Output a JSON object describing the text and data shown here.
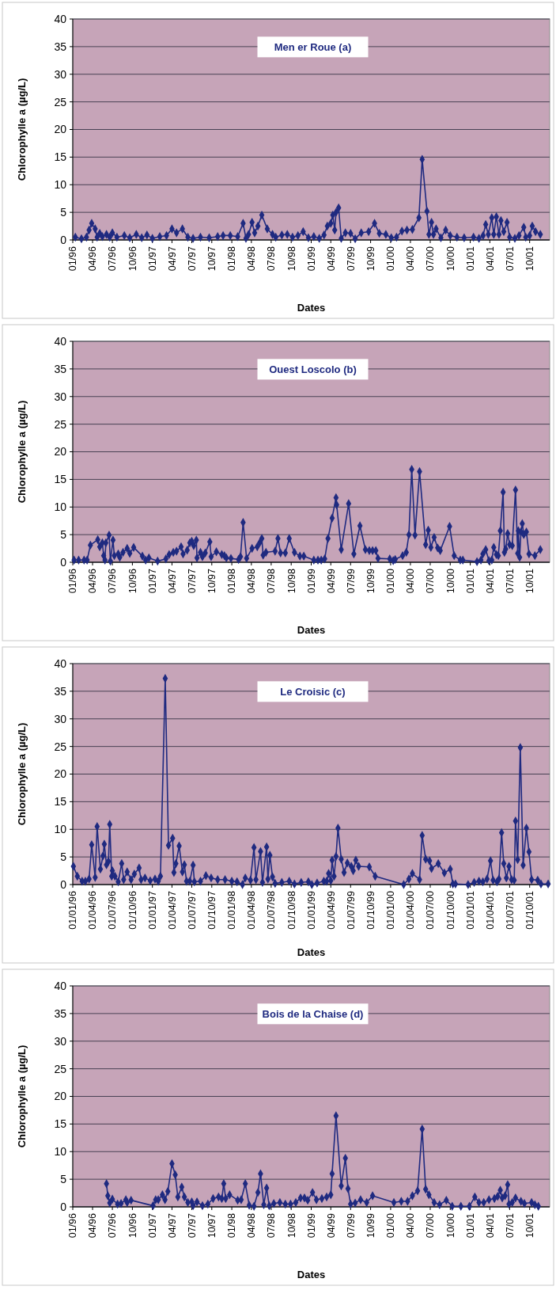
{
  "chart_data": [
    {
      "type": "line",
      "title": "Men er Roue (a)",
      "xlabel": "Dates",
      "ylabel": "Chlorophylle a (µg/L)",
      "color": "#1f2a80",
      "marker": "diamond",
      "line_style": "solid",
      "grid": "y",
      "xlim": [
        "1996-01-01",
        "2002-01-01"
      ],
      "ylim": [
        0,
        40
      ],
      "yticks": [
        0,
        5,
        10,
        15,
        20,
        25,
        30,
        35,
        40
      ],
      "xticks": [
        {
          "value": "1996-01-01",
          "label": "01/96"
        },
        {
          "value": "1996-04-01",
          "label": "04/96"
        },
        {
          "value": "1996-07-01",
          "label": "07/96"
        },
        {
          "value": "1996-10-01",
          "label": "10/96"
        },
        {
          "value": "1997-01-01",
          "label": "01/97"
        },
        {
          "value": "1997-04-01",
          "label": "04/97"
        },
        {
          "value": "1997-07-01",
          "label": "07/97"
        },
        {
          "value": "1997-10-01",
          "label": "10/97"
        },
        {
          "value": "1998-01-01",
          "label": "01/98"
        },
        {
          "value": "1998-04-01",
          "label": "04/98"
        },
        {
          "value": "1998-07-01",
          "label": "07/98"
        },
        {
          "value": "1998-10-01",
          "label": "10/98"
        },
        {
          "value": "1999-01-01",
          "label": "01/99"
        },
        {
          "value": "1999-04-01",
          "label": "04/99"
        },
        {
          "value": "1999-07-01",
          "label": "07/99"
        },
        {
          "value": "1999-10-01",
          "label": "10/99"
        },
        {
          "value": "2000-01-01",
          "label": "01/00"
        },
        {
          "value": "2000-04-01",
          "label": "04/00"
        },
        {
          "value": "2000-07-01",
          "label": "07/00"
        },
        {
          "value": "2000-10-01",
          "label": "10/00"
        },
        {
          "value": "2001-01-01",
          "label": "01/01"
        },
        {
          "value": "2001-04-01",
          "label": "04/01"
        },
        {
          "value": "2001-07-01",
          "label": "07/01"
        },
        {
          "value": "2001-10-01",
          "label": "10/01"
        }
      ],
      "x": [
        "1996-01-13",
        "1996-02-10",
        "1996-03-04",
        "1996-03-16",
        "1996-03-28",
        "1996-04-13",
        "1996-04-22",
        "1996-05-04",
        "1996-05-16",
        "1996-06-04",
        "1996-06-19",
        "1996-07-01",
        "1996-07-22",
        "1996-08-25",
        "1996-09-19",
        "1996-10-19",
        "1996-11-13",
        "1996-12-07",
        "1997-01-01",
        "1997-02-04",
        "1997-03-07",
        "1997-04-01",
        "1997-04-22",
        "1997-05-19",
        "1997-06-13",
        "1997-07-07",
        "1997-08-10",
        "1997-09-19",
        "1997-10-28",
        "1997-11-22",
        "1997-12-25",
        "1998-01-28",
        "1998-02-22",
        "1998-03-07",
        "1998-03-19",
        "1998-04-04",
        "1998-04-16",
        "1998-05-01",
        "1998-05-19",
        "1998-06-13",
        "1998-07-07",
        "1998-07-22",
        "1998-08-19",
        "1998-09-13",
        "1998-10-07",
        "1998-11-01",
        "1998-11-25",
        "1998-12-19",
        "1999-01-13",
        "1999-02-07",
        "1999-03-01",
        "1999-03-16",
        "1999-04-01",
        "1999-04-10",
        "1999-04-19",
        "1999-04-25",
        "1999-05-07",
        "1999-05-19",
        "1999-06-07",
        "1999-07-01",
        "1999-07-22",
        "1999-08-19",
        "1999-09-22",
        "1999-10-19",
        "1999-11-10",
        "1999-12-10",
        "2000-01-04",
        "2000-01-28",
        "2000-02-22",
        "2000-03-16",
        "2000-04-10",
        "2000-05-10",
        "2000-05-25",
        "2000-06-16",
        "2000-06-25",
        "2000-07-07",
        "2000-07-16",
        "2000-07-28",
        "2000-08-19",
        "2000-09-10",
        "2000-10-01",
        "2000-11-01",
        "2000-12-04",
        "2001-01-16",
        "2001-02-10",
        "2001-03-01",
        "2001-03-13",
        "2001-03-25",
        "2001-04-10",
        "2001-04-19",
        "2001-05-01",
        "2001-05-13",
        "2001-05-22",
        "2001-06-04",
        "2001-06-19",
        "2001-07-01",
        "2001-07-25",
        "2001-08-13",
        "2001-09-04",
        "2001-09-13",
        "2001-10-01",
        "2001-10-13",
        "2001-10-28",
        "2001-11-19"
      ],
      "values": [
        0.5,
        0.2,
        0.5,
        1.8,
        3.0,
        2.0,
        0.5,
        1.2,
        0.6,
        1.0,
        0.5,
        1.3,
        0.5,
        0.8,
        0.4,
        1.0,
        0.4,
        0.9,
        0.3,
        0.6,
        0.8,
        2.0,
        1.3,
        2.0,
        0.5,
        0.3,
        0.5,
        0.4,
        0.6,
        0.8,
        0.8,
        0.6,
        3.0,
        0.3,
        1.0,
        3.2,
        1.3,
        2.5,
        4.5,
        2.0,
        1.0,
        0.5,
        0.9,
        1.0,
        0.5,
        0.8,
        1.5,
        0.4,
        0.6,
        0.3,
        0.9,
        2.5,
        3.0,
        4.5,
        1.8,
        5.0,
        5.8,
        0.3,
        1.3,
        1.2,
        0.2,
        1.3,
        1.5,
        3.0,
        1.2,
        1.0,
        0.4,
        0.5,
        1.6,
        1.8,
        1.9,
        4.0,
        14.6,
        5.2,
        1.0,
        3.2,
        1.0,
        2.0,
        0.4,
        1.8,
        0.8,
        0.5,
        0.4,
        0.5,
        0.3,
        0.8,
        2.8,
        1.0,
        4.0,
        1.0,
        4.2,
        1.0,
        3.5,
        1.5,
        3.2,
        0.5,
        0.3,
        0.8,
        2.3,
        0.5,
        0.8,
        2.5,
        1.5,
        1.0
      ]
    },
    {
      "type": "line",
      "title": "Ouest Loscolo (b)",
      "xlabel": "Dates",
      "ylabel": "Chlorophylle a (µg/L)",
      "color": "#1f2a80",
      "marker": "diamond",
      "line_style": "solid",
      "grid": "y",
      "xlim": [
        "1996-01-01",
        "2002-01-01"
      ],
      "ylim": [
        0,
        40
      ],
      "yticks": [
        0,
        5,
        10,
        15,
        20,
        25,
        30,
        35,
        40
      ],
      "xticks": [
        {
          "value": "1996-01-01",
          "label": "01/96"
        },
        {
          "value": "1996-04-01",
          "label": "04/96"
        },
        {
          "value": "1996-07-01",
          "label": "07/96"
        },
        {
          "value": "1996-10-01",
          "label": "10/96"
        },
        {
          "value": "1997-01-01",
          "label": "01/97"
        },
        {
          "value": "1997-04-01",
          "label": "04/97"
        },
        {
          "value": "1997-07-01",
          "label": "07/97"
        },
        {
          "value": "1997-10-01",
          "label": "10/97"
        },
        {
          "value": "1998-01-01",
          "label": "01/98"
        },
        {
          "value": "1998-04-01",
          "label": "04/98"
        },
        {
          "value": "1998-07-01",
          "label": "07/98"
        },
        {
          "value": "1998-10-01",
          "label": "10/98"
        },
        {
          "value": "1999-01-01",
          "label": "01/99"
        },
        {
          "value": "1999-04-01",
          "label": "04/99"
        },
        {
          "value": "1999-07-01",
          "label": "07/99"
        },
        {
          "value": "1999-10-01",
          "label": "10/99"
        },
        {
          "value": "2000-01-01",
          "label": "01/00"
        },
        {
          "value": "2000-04-01",
          "label": "04/00"
        },
        {
          "value": "2000-07-01",
          "label": "07/00"
        },
        {
          "value": "2000-10-01",
          "label": "10/00"
        },
        {
          "value": "2001-01-01",
          "label": "01/01"
        },
        {
          "value": "2001-04-01",
          "label": "04/01"
        },
        {
          "value": "2001-07-01",
          "label": "07/01"
        },
        {
          "value": "2001-10-01",
          "label": "10/01"
        }
      ],
      "x": [
        "1996-01-07",
        "1996-01-28",
        "1996-02-22",
        "1996-03-07",
        "1996-03-22",
        "1996-04-25",
        "1996-05-04",
        "1996-05-16",
        "1996-05-22",
        "1996-05-28",
        "1996-06-01",
        "1996-06-16",
        "1996-06-22",
        "1996-07-04",
        "1996-07-10",
        "1996-07-28",
        "1996-08-04",
        "1996-08-19",
        "1996-09-07",
        "1996-09-19",
        "1996-10-07",
        "1996-11-16",
        "1996-12-01",
        "1996-12-16",
        "1997-01-25",
        "1997-03-04",
        "1997-03-19",
        "1997-04-07",
        "1997-04-22",
        "1997-05-13",
        "1997-05-22",
        "1997-06-10",
        "1997-06-22",
        "1997-07-01",
        "1997-07-10",
        "1997-07-22",
        "1997-07-25",
        "1997-08-10",
        "1997-08-19",
        "1997-09-01",
        "1997-09-22",
        "1997-09-28",
        "1997-10-22",
        "1997-11-16",
        "1997-11-28",
        "1997-12-07",
        "1997-12-28",
        "1998-02-01",
        "1998-02-10",
        "1998-02-22",
        "1998-03-10",
        "1998-04-04",
        "1998-04-28",
        "1998-05-10",
        "1998-05-19",
        "1998-05-25",
        "1998-06-07",
        "1998-07-19",
        "1998-08-01",
        "1998-08-13",
        "1998-09-04",
        "1998-09-22",
        "1998-10-16",
        "1998-11-10",
        "1998-11-28",
        "1999-01-13",
        "1999-02-01",
        "1999-02-16",
        "1999-03-04",
        "1999-03-19",
        "1999-04-07",
        "1999-04-25",
        "1999-04-28",
        "1999-05-19",
        "1999-06-22",
        "1999-07-16",
        "1999-08-13",
        "1999-09-07",
        "1999-09-25",
        "1999-10-10",
        "1999-10-25",
        "1999-11-04",
        "1999-12-28",
        "2000-01-13",
        "2000-01-22",
        "2000-02-25",
        "2000-03-13",
        "2000-03-25",
        "2000-04-07",
        "2000-04-22",
        "2000-05-13",
        "2000-06-10",
        "2000-06-22",
        "2000-07-04",
        "2000-07-19",
        "2000-08-04",
        "2000-08-16",
        "2000-09-28",
        "2000-10-19",
        "2000-11-16",
        "2000-11-28",
        "2001-02-01",
        "2001-02-19",
        "2001-02-28",
        "2001-03-13",
        "2001-03-28",
        "2001-04-10",
        "2001-04-19",
        "2001-05-01",
        "2001-05-10",
        "2001-05-19",
        "2001-06-01",
        "2001-06-07",
        "2001-06-13",
        "2001-06-22",
        "2001-07-01",
        "2001-07-13",
        "2001-07-28",
        "2001-08-07",
        "2001-08-10",
        "2001-08-16",
        "2001-08-22",
        "2001-08-28",
        "2001-09-04",
        "2001-09-16",
        "2001-09-28",
        "2001-10-25",
        "2001-11-19"
      ],
      "values": [
        0.4,
        0.4,
        0.4,
        0.4,
        3.1,
        4.1,
        2.8,
        3.5,
        1.2,
        0.4,
        3.5,
        4.9,
        0.2,
        4.0,
        1.2,
        1.5,
        0.9,
        1.8,
        2.5,
        1.6,
        2.7,
        1.1,
        0.4,
        0.8,
        0.2,
        0.6,
        1.4,
        1.8,
        2.0,
        2.8,
        1.5,
        2.2,
        3.5,
        3.8,
        3.0,
        4.0,
        0.8,
        1.8,
        1.0,
        1.7,
        3.7,
        1.0,
        1.9,
        1.4,
        1.2,
        0.8,
        0.7,
        0.5,
        1.0,
        7.2,
        0.7,
        2.5,
        2.8,
        3.6,
        4.3,
        1.3,
        1.8,
        2.0,
        4.3,
        1.7,
        1.7,
        4.3,
        1.8,
        1.1,
        1.1,
        0.4,
        0.4,
        0.4,
        0.6,
        4.3,
        8.0,
        11.7,
        10.4,
        2.3,
        10.6,
        1.5,
        6.6,
        2.3,
        2.1,
        2.1,
        2.1,
        0.7,
        0.6,
        0.3,
        0.5,
        1.2,
        1.8,
        5.0,
        16.8,
        4.9,
        16.4,
        3.2,
        5.8,
        2.7,
        4.5,
        2.6,
        2.1,
        6.5,
        1.2,
        0.4,
        0.4,
        0.1,
        0.4,
        1.5,
        2.3,
        0.3,
        0.4,
        2.7,
        1.4,
        1.2,
        5.7,
        12.7,
        1.8,
        2.4,
        5.2,
        3.2,
        3.0,
        13.1,
        1.6,
        5.7,
        0.9,
        5.5,
        7.0,
        5.0,
        5.5,
        1.5,
        1.2,
        2.3
      ]
    },
    {
      "type": "line",
      "title": "Le Croisic (c)",
      "xlabel": "Dates",
      "ylabel": "Chlorophylle a (µg/L)",
      "color": "#1f2a80",
      "marker": "diamond",
      "line_style": "solid",
      "grid": "y",
      "xlim": [
        "1996-01-01",
        "2002-01-01"
      ],
      "ylim": [
        0,
        40
      ],
      "yticks": [
        0,
        5,
        10,
        15,
        20,
        25,
        30,
        35,
        40
      ],
      "xticks": [
        {
          "value": "1996-01-01",
          "label": "01/01/96"
        },
        {
          "value": "1996-04-01",
          "label": "01/04/96"
        },
        {
          "value": "1996-07-01",
          "label": "01/07/96"
        },
        {
          "value": "1996-10-01",
          "label": "01/10/96"
        },
        {
          "value": "1997-01-01",
          "label": "01/01/97"
        },
        {
          "value": "1997-04-01",
          "label": "01/04/97"
        },
        {
          "value": "1997-07-01",
          "label": "01/07/97"
        },
        {
          "value": "1997-10-01",
          "label": "01/10/97"
        },
        {
          "value": "1998-01-01",
          "label": "01/01/98"
        },
        {
          "value": "1998-04-01",
          "label": "01/04/98"
        },
        {
          "value": "1998-07-01",
          "label": "01/07/98"
        },
        {
          "value": "1998-10-01",
          "label": "01/10/98"
        },
        {
          "value": "1999-01-01",
          "label": "01/01/99"
        },
        {
          "value": "1999-04-01",
          "label": "01/04/99"
        },
        {
          "value": "1999-07-01",
          "label": "01/07/99"
        },
        {
          "value": "1999-10-01",
          "label": "01/10/99"
        },
        {
          "value": "2000-01-01",
          "label": "01/01/00"
        },
        {
          "value": "2000-04-01",
          "label": "01/04/00"
        },
        {
          "value": "2000-07-01",
          "label": "01/07/00"
        },
        {
          "value": "2000-10-01",
          "label": "01/10/00"
        },
        {
          "value": "2001-01-01",
          "label": "01/01/01"
        },
        {
          "value": "2001-04-01",
          "label": "01/04/01"
        },
        {
          "value": "2001-07-01",
          "label": "01/07/01"
        },
        {
          "value": "2001-10-01",
          "label": "01/10/01"
        }
      ],
      "x": [
        "1996-01-04",
        "1996-01-22",
        "1996-02-13",
        "1996-02-28",
        "1996-03-16",
        "1996-03-28",
        "1996-04-13",
        "1996-04-22",
        "1996-05-07",
        "1996-05-19",
        "1996-05-25",
        "1996-06-04",
        "1996-06-13",
        "1996-06-19",
        "1996-06-28",
        "1996-07-01",
        "1996-07-13",
        "1996-07-28",
        "1996-08-13",
        "1996-08-22",
        "1996-09-07",
        "1996-09-25",
        "1996-10-10",
        "1996-11-01",
        "1996-11-10",
        "1996-11-28",
        "1996-12-22",
        "1997-01-13",
        "1997-01-28",
        "1997-02-07",
        "1997-03-01",
        "1997-03-16",
        "1997-04-04",
        "1997-04-10",
        "1997-04-19",
        "1997-05-04",
        "1997-05-19",
        "1997-05-28",
        "1997-06-07",
        "1997-06-22",
        "1997-07-07",
        "1997-07-13",
        "1997-08-10",
        "1997-09-04",
        "1997-09-28",
        "1997-10-28",
        "1997-12-01",
        "1998-01-01",
        "1998-01-25",
        "1998-02-19",
        "1998-03-04",
        "1998-03-28",
        "1998-04-13",
        "1998-04-22",
        "1998-05-13",
        "1998-05-22",
        "1998-06-10",
        "1998-06-16",
        "1998-06-25",
        "1998-07-07",
        "1998-07-19",
        "1998-08-19",
        "1998-09-22",
        "1998-10-16",
        "1998-11-16",
        "1998-12-19",
        "1999-01-04",
        "1999-01-28",
        "1999-02-28",
        "1999-03-13",
        "1999-03-22",
        "1999-04-01",
        "1999-04-07",
        "1999-04-16",
        "1999-04-25",
        "1999-05-04",
        "1999-05-19",
        "1999-06-01",
        "1999-06-16",
        "1999-07-04",
        "1999-07-13",
        "1999-07-25",
        "1999-08-07",
        "1999-09-25",
        "1999-10-22",
        "2000-03-01",
        "2000-03-25",
        "2000-04-10",
        "2000-05-13",
        "2000-05-25",
        "2000-06-10",
        "2000-06-28",
        "2000-07-07",
        "2000-08-07",
        "2000-09-04",
        "2000-10-01",
        "2000-10-13",
        "2000-10-25",
        "2000-12-22",
        "2001-01-19",
        "2001-02-10",
        "2001-02-28",
        "2001-03-19",
        "2001-04-04",
        "2001-04-16",
        "2001-05-04",
        "2001-05-13",
        "2001-05-25",
        "2001-06-04",
        "2001-06-16",
        "2001-06-28",
        "2001-07-10",
        "2001-07-22",
        "2001-07-28",
        "2001-08-07",
        "2001-08-19",
        "2001-09-01",
        "2001-09-16",
        "2001-09-28",
        "2001-10-10",
        "2001-11-07",
        "2001-11-22",
        "2001-12-25"
      ],
      "values": [
        3.3,
        1.5,
        0.6,
        0.6,
        1.0,
        7.2,
        1.3,
        10.5,
        2.8,
        5.2,
        7.3,
        3.6,
        4.2,
        10.9,
        1.5,
        2.5,
        1.5,
        0.5,
        3.8,
        0.9,
        2.3,
        0.9,
        1.9,
        3.0,
        0.9,
        1.2,
        0.7,
        1.0,
        0.6,
        1.5,
        37.3,
        7.1,
        8.4,
        2.2,
        3.8,
        7.0,
        2.3,
        3.6,
        0.6,
        0.6,
        3.5,
        0.5,
        0.6,
        1.6,
        1.2,
        0.9,
        0.9,
        0.6,
        0.5,
        0.0,
        1.2,
        0.8,
        6.7,
        0.9,
        6.0,
        0.4,
        6.8,
        1.0,
        5.3,
        1.4,
        0.2,
        0.4,
        0.6,
        0.1,
        0.4,
        0.5,
        0.0,
        0.3,
        0.6,
        0.6,
        2.0,
        0.7,
        4.4,
        1.5,
        5.1,
        10.2,
        4.6,
        2.2,
        3.9,
        3.3,
        2.5,
        4.4,
        3.3,
        3.2,
        1.5,
        0.0,
        1.0,
        2.0,
        0.9,
        8.9,
        4.6,
        4.3,
        2.9,
        3.8,
        2.1,
        2.8,
        0.1,
        0.1,
        0.0,
        0.4,
        0.6,
        0.5,
        1.0,
        4.3,
        0.8,
        0.5,
        1.0,
        9.4,
        3.8,
        1.2,
        3.3,
        0.9,
        0.8,
        11.5,
        4.5,
        24.8,
        3.5,
        10.2,
        5.9,
        0.9,
        0.8,
        0.1,
        0.1
      ]
    },
    {
      "type": "line",
      "title": "Bois de la Chaise (d)",
      "xlabel": "Dates",
      "ylabel": "Chlorophylle a (µg/L)",
      "color": "#1f2a80",
      "marker": "diamond",
      "line_style": "solid",
      "grid": "y",
      "xlim": [
        "1996-01-01",
        "2002-01-01"
      ],
      "ylim": [
        0,
        40
      ],
      "yticks": [
        0,
        5,
        10,
        15,
        20,
        25,
        30,
        35,
        40
      ],
      "xticks": [
        {
          "value": "1996-01-01",
          "label": "01/96"
        },
        {
          "value": "1996-04-01",
          "label": "04/96"
        },
        {
          "value": "1996-07-01",
          "label": "07/96"
        },
        {
          "value": "1996-10-01",
          "label": "10/96"
        },
        {
          "value": "1997-01-01",
          "label": "01/97"
        },
        {
          "value": "1997-04-01",
          "label": "04/97"
        },
        {
          "value": "1997-07-01",
          "label": "07/97"
        },
        {
          "value": "1997-10-01",
          "label": "10/97"
        },
        {
          "value": "1998-01-01",
          "label": "01/98"
        },
        {
          "value": "1998-04-01",
          "label": "04/98"
        },
        {
          "value": "1998-07-01",
          "label": "07/98"
        },
        {
          "value": "1998-10-01",
          "label": "10/98"
        },
        {
          "value": "1999-01-01",
          "label": "01/99"
        },
        {
          "value": "1999-04-01",
          "label": "04/99"
        },
        {
          "value": "1999-07-01",
          "label": "07/99"
        },
        {
          "value": "1999-10-01",
          "label": "10/99"
        },
        {
          "value": "2000-01-01",
          "label": "01/00"
        },
        {
          "value": "2000-04-01",
          "label": "04/00"
        },
        {
          "value": "2000-07-01",
          "label": "07/00"
        },
        {
          "value": "2000-10-01",
          "label": "10/00"
        },
        {
          "value": "2001-01-01",
          "label": "01/01"
        },
        {
          "value": "2001-04-01",
          "label": "04/01"
        },
        {
          "value": "2001-07-01",
          "label": "07/01"
        },
        {
          "value": "2001-10-01",
          "label": "10/01"
        }
      ],
      "x": [
        "1996-06-04",
        "1996-06-10",
        "1996-06-19",
        "1996-07-01",
        "1996-07-25",
        "1996-08-10",
        "1996-09-01",
        "1996-09-07",
        "1996-09-25",
        "1997-01-04",
        "1997-01-16",
        "1997-01-28",
        "1997-02-16",
        "1997-02-28",
        "1997-03-13",
        "1997-04-01",
        "1997-04-16",
        "1997-04-28",
        "1997-05-16",
        "1997-05-28",
        "1997-06-13",
        "1997-07-01",
        "1997-07-07",
        "1997-07-25",
        "1997-08-19",
        "1997-09-13",
        "1997-10-07",
        "1997-11-01",
        "1997-11-16",
        "1997-11-25",
        "1997-12-04",
        "1997-12-22",
        "1998-01-28",
        "1998-02-13",
        "1998-03-04",
        "1998-03-22",
        "1998-04-13",
        "1998-05-01",
        "1998-05-13",
        "1998-05-28",
        "1998-06-10",
        "1998-06-22",
        "1998-07-13",
        "1998-08-10",
        "1998-09-04",
        "1998-09-28",
        "1998-10-22",
        "1998-11-13",
        "1998-12-01",
        "1998-12-16",
        "1999-01-07",
        "1999-01-25",
        "1999-02-19",
        "1999-03-13",
        "1999-04-01",
        "1999-04-07",
        "1999-04-25",
        "1999-05-19",
        "1999-06-07",
        "1999-06-19",
        "1999-07-01",
        "1999-07-22",
        "1999-08-16",
        "1999-09-13",
        "1999-10-10",
        "2000-01-16",
        "2000-02-19",
        "2000-03-19",
        "2000-04-10",
        "2000-05-04",
        "2000-05-25",
        "2000-06-10",
        "2000-06-25",
        "2000-07-19",
        "2000-08-13",
        "2000-09-13",
        "2000-10-10",
        "2000-11-19",
        "2000-12-28",
        "2001-01-22",
        "2001-02-10",
        "2001-03-04",
        "2001-03-28",
        "2001-04-22",
        "2001-05-07",
        "2001-05-19",
        "2001-05-28",
        "2001-06-10",
        "2001-06-22",
        "2001-06-28",
        "2001-07-13",
        "2001-07-28",
        "2001-08-22",
        "2001-09-07",
        "2001-10-10",
        "2001-10-25",
        "2001-11-10"
      ],
      "values": [
        4.2,
        2.0,
        0.7,
        1.4,
        0.5,
        0.6,
        1.3,
        0.8,
        1.2,
        0.2,
        1.3,
        1.3,
        2.2,
        1.3,
        2.8,
        7.8,
        5.8,
        1.8,
        3.6,
        1.8,
        0.8,
        0.9,
        0.2,
        0.9,
        0.2,
        0.5,
        1.5,
        1.8,
        1.5,
        4.2,
        1.5,
        2.2,
        1.2,
        1.3,
        4.2,
        0.3,
        0.1,
        2.6,
        6.0,
        0.4,
        3.4,
        0.2,
        0.6,
        0.8,
        0.5,
        0.5,
        0.8,
        1.6,
        1.6,
        1.2,
        2.6,
        1.3,
        1.5,
        1.8,
        2.2,
        6.0,
        16.5,
        3.8,
        8.8,
        3.3,
        0.5,
        0.7,
        1.3,
        0.8,
        2.0,
        0.8,
        1.0,
        1.0,
        2.0,
        2.9,
        14.1,
        3.2,
        2.2,
        0.8,
        0.4,
        1.2,
        0.1,
        0.1,
        0.1,
        1.8,
        0.8,
        0.8,
        1.3,
        1.5,
        1.9,
        3.0,
        1.6,
        2.0,
        4.0,
        0.5,
        0.8,
        1.6,
        1.0,
        0.6,
        0.8,
        0.4,
        0.1
      ]
    }
  ]
}
